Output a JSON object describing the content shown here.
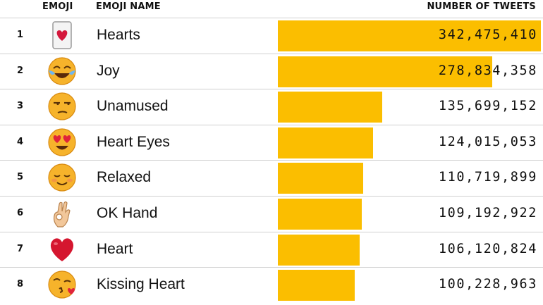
{
  "chart_data": {
    "type": "bar",
    "columns": [
      "EMOJI",
      "EMOJI NAME",
      "NUMBER OF TWEETS"
    ],
    "categories": [
      "Hearts",
      "Joy",
      "Unamused",
      "Heart Eyes",
      "Relaxed",
      "OK Hand",
      "Heart",
      "Kissing Heart"
    ],
    "ranks": [
      "1",
      "2",
      "3",
      "4",
      "5",
      "6",
      "7",
      "8"
    ],
    "values": [
      342475410,
      278834358,
      135699152,
      124015053,
      110719899,
      109192922,
      106120824,
      100228963
    ],
    "labels": [
      "342,475,410",
      "278,834,358",
      "135,699,152",
      "124,015,053",
      "110,719,899",
      "109,192,922",
      "106,120,824",
      "100,228,963"
    ],
    "emoji_icons": [
      "card-heart-icon",
      "tears-of-joy-icon",
      "unamused-face-icon",
      "heart-eyes-icon",
      "relaxed-face-icon",
      "ok-hand-icon",
      "red-heart-icon",
      "kissing-heart-icon"
    ],
    "bar_color": "#fbbe00"
  }
}
